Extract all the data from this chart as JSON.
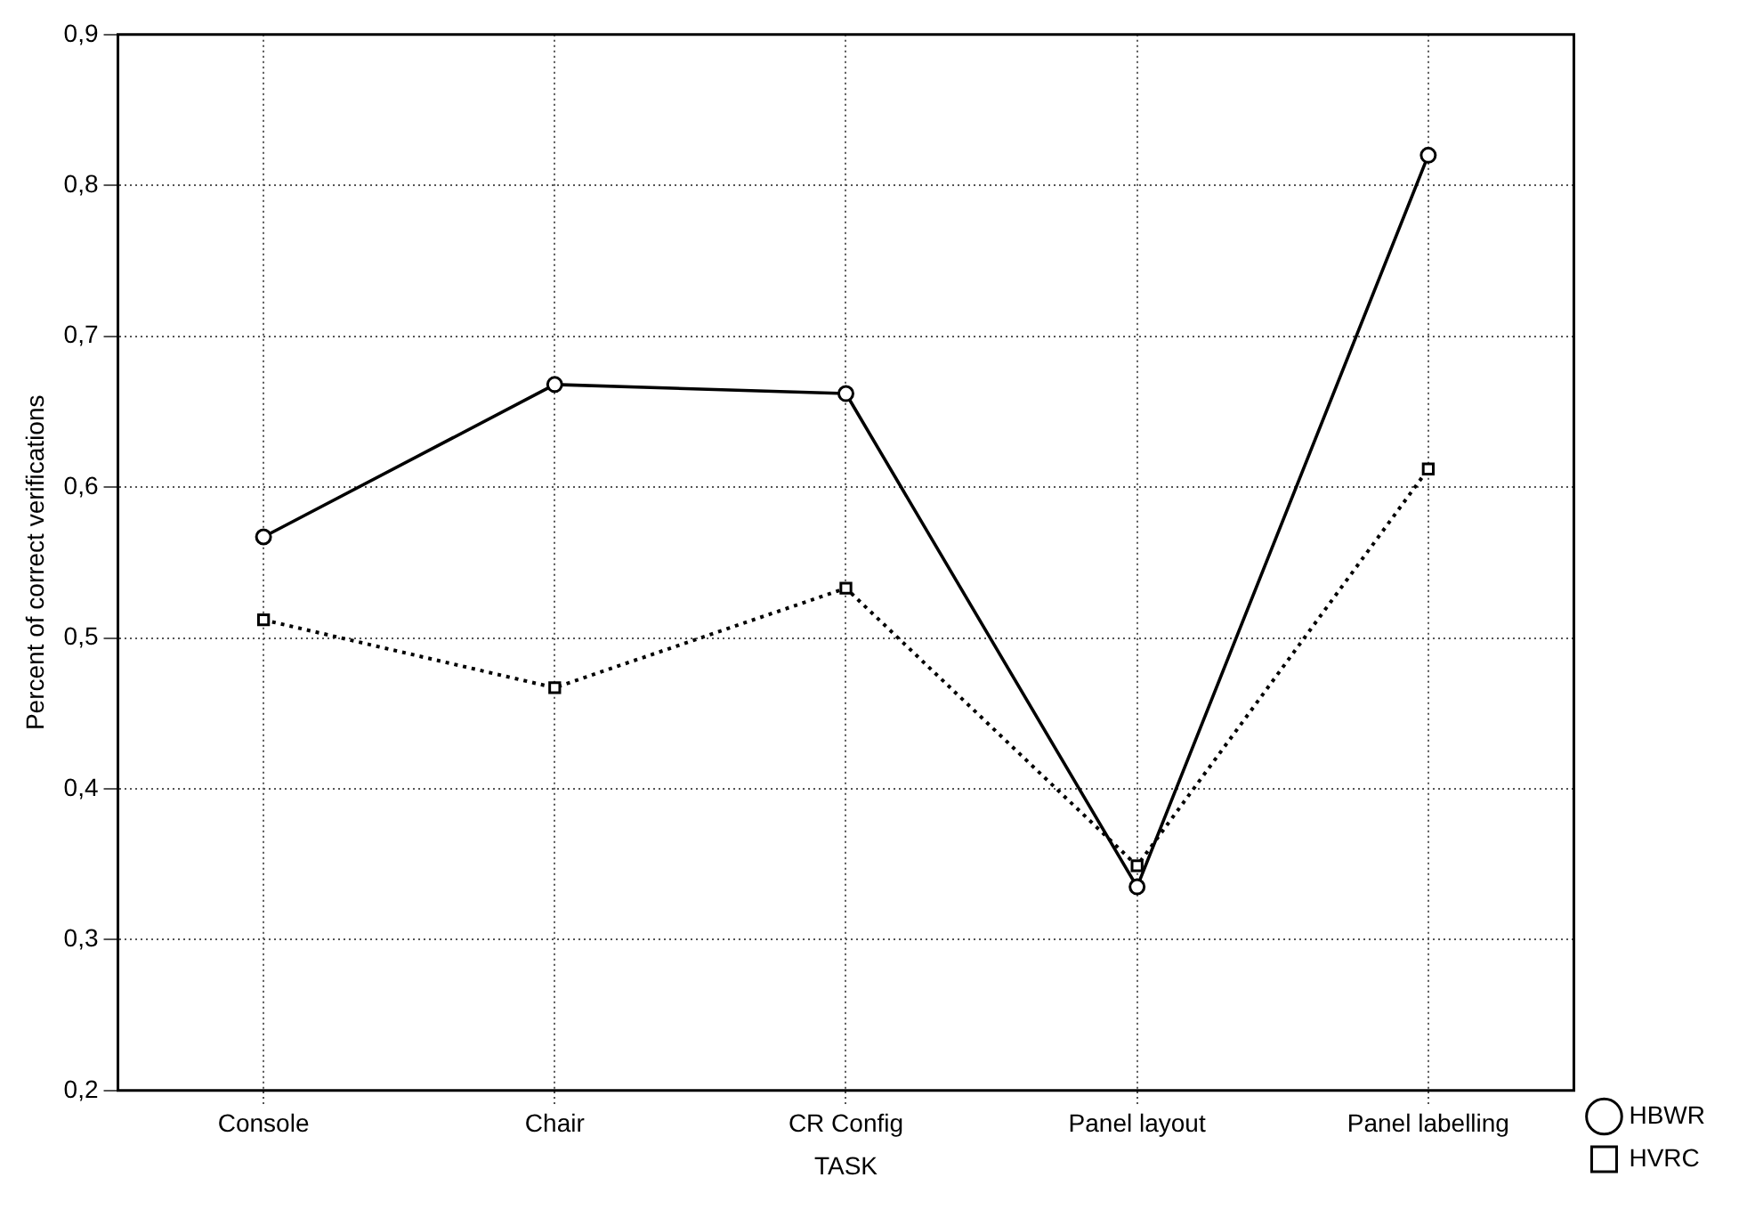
{
  "chart_data": {
    "type": "line",
    "xlabel": "TASK",
    "ylabel": "Percent of correct verifications",
    "categories": [
      "Console",
      "Chair",
      "CR Config",
      "Panel layout",
      "Panel labelling"
    ],
    "series": [
      {
        "name": "HBWR",
        "color": "#000000",
        "values": [
          0.567,
          0.668,
          0.662,
          0.335,
          0.82
        ],
        "marker": "circle",
        "line_style": "solid"
      },
      {
        "name": "HVRC",
        "color": "#000000",
        "values": [
          0.512,
          0.467,
          0.533,
          0.349,
          0.612
        ],
        "marker": "square",
        "line_style": "dotted"
      }
    ],
    "ylim": [
      0.2,
      0.9
    ],
    "yticks": [
      {
        "value": 0.2,
        "label": "0,2"
      },
      {
        "value": 0.3,
        "label": "0,3"
      },
      {
        "value": 0.4,
        "label": "0,4"
      },
      {
        "value": 0.5,
        "label": "0,5"
      },
      {
        "value": 0.6,
        "label": "0,6"
      },
      {
        "value": 0.7,
        "label": "0,7"
      },
      {
        "value": 0.8,
        "label": "0,8"
      },
      {
        "value": 0.9,
        "label": "0,9"
      }
    ],
    "grid": true,
    "legend": "bottom right"
  }
}
